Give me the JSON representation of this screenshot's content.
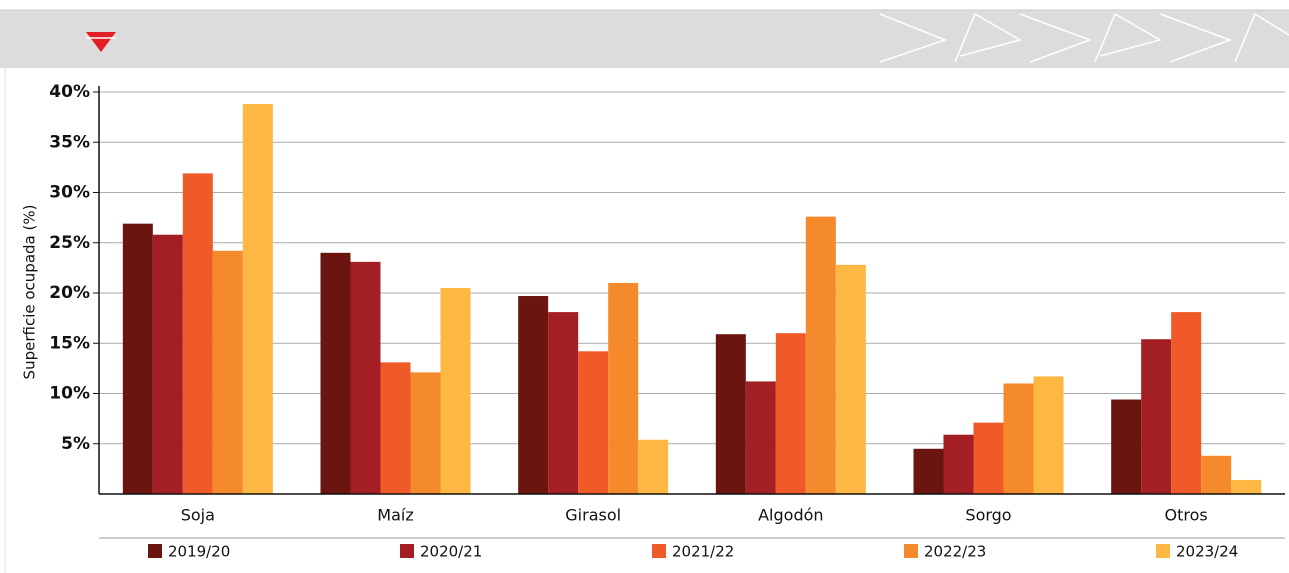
{
  "chart_data": {
    "type": "bar",
    "y_label": "Superficie ocupada (%)",
    "categories": [
      "Soja",
      "Maíz",
      "Girasol",
      "Algodón",
      "Sorgo",
      "Otros"
    ],
    "series": [
      {
        "name": "2019/20",
        "color": "#6b1511",
        "values": [
          26.9,
          24.0,
          19.7,
          15.9,
          4.5,
          9.4
        ]
      },
      {
        "name": "2020/21",
        "color": "#a31f23",
        "values": [
          25.8,
          23.1,
          18.1,
          11.2,
          5.9,
          15.4
        ]
      },
      {
        "name": "2021/22",
        "color": "#f05a28",
        "values": [
          31.9,
          13.1,
          14.2,
          16.0,
          7.1,
          18.1
        ]
      },
      {
        "name": "2022/23",
        "color": "#f48a2b",
        "values": [
          24.2,
          12.1,
          21.0,
          27.6,
          11.0,
          3.8
        ]
      },
      {
        "name": "2023/24",
        "color": "#fdb743",
        "values": [
          38.8,
          20.5,
          5.4,
          22.8,
          11.7,
          1.4
        ]
      }
    ],
    "ylim": [
      0,
      40
    ],
    "yticks": [
      {
        "value": 5,
        "label": "5%"
      },
      {
        "value": 10,
        "label": "10%"
      },
      {
        "value": 15,
        "label": "15%"
      },
      {
        "value": 20,
        "label": "20%"
      },
      {
        "value": 25,
        "label": "25%"
      },
      {
        "value": 30,
        "label": "30%"
      },
      {
        "value": 35,
        "label": "35%"
      },
      {
        "value": 40,
        "label": "40%"
      }
    ],
    "grid": true
  }
}
